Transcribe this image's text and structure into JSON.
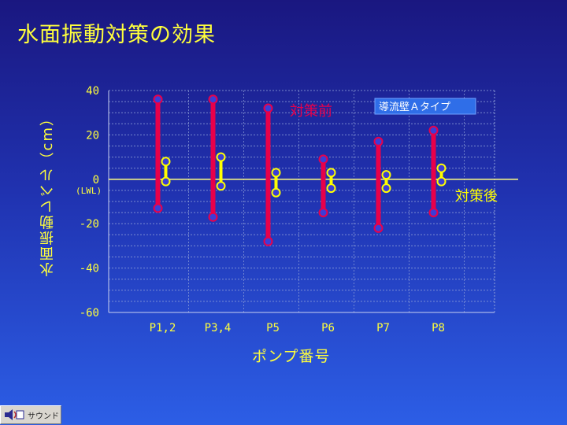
{
  "title": "水面振動対策の効果",
  "footer": {
    "sound_label": "サウンド",
    "sound_icon": "speaker-icon"
  },
  "chart_data": {
    "type": "range",
    "ylabel": "水面振動レベル（cm）",
    "xlabel": "ポンプ番号",
    "ylim": [
      -60,
      40
    ],
    "yticks": [
      "40",
      "20",
      "0",
      "-20",
      "-40",
      "-60"
    ],
    "zero_note": "(LWL)",
    "categories": [
      "P1,2",
      "P3,4",
      "P5",
      "P6",
      "P7",
      "P8"
    ],
    "series": [
      {
        "name": "対策前",
        "color": "#e8004a",
        "ranges": [
          [
            -13,
            36
          ],
          [
            -17,
            36
          ],
          [
            -28,
            32
          ],
          [
            -15,
            9
          ],
          [
            -22,
            17
          ],
          [
            -15,
            22
          ]
        ]
      },
      {
        "name": "対策後",
        "color": "#ffff00",
        "ranges": [
          [
            -1,
            8
          ],
          [
            -3,
            10
          ],
          [
            -6,
            3
          ],
          [
            -4,
            3
          ],
          [
            -4,
            2
          ],
          [
            -1,
            5
          ]
        ]
      }
    ],
    "legend_note": "導流壁Ａタイプ",
    "grid": true
  }
}
